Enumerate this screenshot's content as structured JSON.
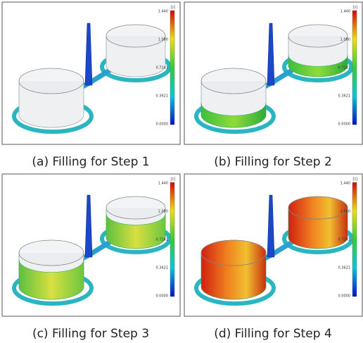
{
  "colorbar": {
    "unit": "[s]",
    "ticks": [
      "1.440",
      "1.080",
      "0.7241",
      "0.3621",
      "0.0000"
    ]
  },
  "panels": [
    {
      "caption": "(a) Filling for Step 1"
    },
    {
      "caption": "(b) Filling for Step 2"
    },
    {
      "caption": "(c) Filling for Step 3"
    },
    {
      "caption": "(d) Filling for Step 4"
    }
  ]
}
